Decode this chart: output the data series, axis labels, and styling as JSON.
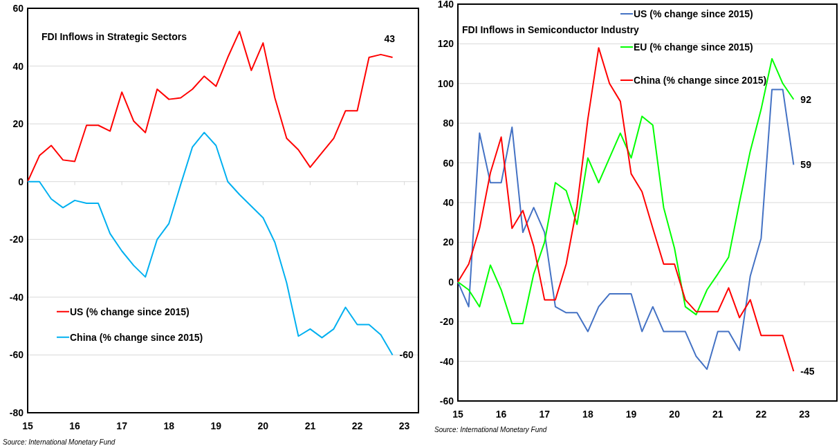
{
  "chart_data": [
    {
      "type": "line",
      "title": "FDI Inflows in Strategic Sectors",
      "x": [
        15,
        15.25,
        15.5,
        15.75,
        16,
        16.25,
        16.5,
        16.75,
        17,
        17.25,
        17.5,
        17.75,
        18,
        18.25,
        18.5,
        18.75,
        19,
        19.25,
        19.5,
        19.75,
        20,
        20.25,
        20.5,
        20.75,
        21,
        21.25,
        21.5,
        21.75,
        22,
        22.25,
        22.5,
        22.75
      ],
      "series": [
        {
          "name": "US (% change since 2015)",
          "color": "#ff0000",
          "values": [
            0,
            9,
            12.5,
            7.5,
            7,
            19.5,
            19.5,
            17.5,
            31,
            21,
            17,
            32,
            28.5,
            29,
            32,
            36.5,
            33,
            43,
            52,
            38.5,
            48,
            29,
            15,
            11,
            5,
            10,
            15,
            24.5,
            24.5,
            43,
            44,
            43
          ],
          "value_labels": [
            null,
            null,
            null,
            null,
            null,
            null,
            null,
            null,
            null,
            null,
            null,
            null,
            null,
            null,
            null,
            null,
            null,
            null,
            null,
            null,
            null,
            null,
            null,
            null,
            null,
            null,
            null,
            null,
            null,
            null,
            null,
            "43"
          ]
        },
        {
          "name": "China (% change since 2015)",
          "color": "#00b0f0",
          "values": [
            0,
            0,
            -6,
            -9,
            -6.5,
            -7.5,
            -7.5,
            -18,
            -24,
            -29,
            -33,
            -20,
            -14.5,
            -1,
            12,
            17,
            12.5,
            0,
            -4.5,
            -8.5,
            -12.5,
            -21,
            -35,
            -53.5,
            -51,
            -54,
            -51,
            -43.5,
            -49.5,
            -49.5,
            -53,
            -60
          ],
          "value_labels": [
            null,
            null,
            null,
            null,
            null,
            null,
            null,
            null,
            null,
            null,
            null,
            null,
            null,
            null,
            null,
            null,
            null,
            null,
            null,
            null,
            null,
            null,
            null,
            null,
            null,
            null,
            null,
            null,
            null,
            null,
            null,
            "-60"
          ]
        }
      ],
      "xlim": [
        15,
        23.3
      ],
      "xticks": [
        15,
        16,
        17,
        18,
        19,
        20,
        21,
        22,
        23
      ],
      "ylim": [
        -80,
        60
      ],
      "yticks": [
        -80,
        -60,
        -40,
        -20,
        0,
        20,
        40,
        60
      ],
      "grid": "y",
      "legend": "bottom left",
      "annotations": [
        "Source: International Monetary Fund"
      ]
    },
    {
      "type": "line",
      "title": "FDI Inflows in Semiconductor Industry",
      "x": [
        15,
        15.25,
        15.5,
        15.75,
        16,
        16.25,
        16.5,
        16.75,
        17,
        17.25,
        17.5,
        17.75,
        18,
        18.25,
        18.5,
        18.75,
        19,
        19.25,
        19.5,
        19.75,
        20,
        20.25,
        20.5,
        20.75,
        21,
        21.25,
        21.5,
        21.75,
        22,
        22.25,
        22.5,
        22.75
      ],
      "series": [
        {
          "name": "US (% change since 2015)",
          "color": "#4472c4",
          "values": [
            0,
            -12.5,
            75,
            50,
            50,
            78,
            25,
            37.5,
            25,
            -12.5,
            -15.5,
            -15.5,
            -25,
            -12.5,
            -6,
            -6,
            -6,
            -25,
            -12.5,
            -25,
            -25,
            -25,
            -37.5,
            -44,
            -25,
            -25,
            -34.5,
            3,
            22,
            97,
            97,
            59
          ],
          "value_labels": [
            null,
            null,
            null,
            null,
            null,
            null,
            null,
            null,
            null,
            null,
            null,
            null,
            null,
            null,
            null,
            null,
            null,
            null,
            null,
            null,
            null,
            null,
            null,
            null,
            null,
            null,
            null,
            null,
            null,
            null,
            null,
            "59"
          ]
        },
        {
          "name": "EU (% change since 2015)",
          "color": "#00ff00",
          "values": [
            0,
            -4,
            -12.5,
            8.5,
            -4,
            -21,
            -21,
            4,
            20,
            50,
            46,
            29,
            62.5,
            50,
            62.5,
            75,
            62.5,
            83.5,
            79,
            37.5,
            17,
            -12.5,
            -16.5,
            -4,
            4,
            12.5,
            40,
            66,
            87,
            112.5,
            100,
            92
          ],
          "value_labels": [
            null,
            null,
            null,
            null,
            null,
            null,
            null,
            null,
            null,
            null,
            null,
            null,
            null,
            null,
            null,
            null,
            null,
            null,
            null,
            null,
            null,
            null,
            null,
            null,
            null,
            null,
            null,
            null,
            null,
            null,
            null,
            "92"
          ]
        },
        {
          "name": "China (% change since 2015)",
          "color": "#ff0000",
          "values": [
            0,
            9,
            27,
            55,
            73,
            27,
            36,
            18,
            -9,
            -9,
            9,
            38,
            82,
            118,
            100,
            91,
            54.5,
            45.5,
            27,
            9,
            9,
            -9,
            -15,
            -15,
            -15,
            -3,
            -18,
            -9,
            -27,
            -27,
            -27,
            -45
          ],
          "value_labels": [
            null,
            null,
            null,
            null,
            null,
            null,
            null,
            null,
            null,
            null,
            null,
            null,
            null,
            null,
            null,
            null,
            null,
            null,
            null,
            null,
            null,
            null,
            null,
            null,
            null,
            null,
            null,
            null,
            null,
            null,
            null,
            "-45"
          ]
        }
      ],
      "xlim": [
        15,
        23.75
      ],
      "xticks": [
        15,
        16,
        17,
        18,
        19,
        20,
        21,
        22,
        23
      ],
      "ylim": [
        -60,
        140
      ],
      "yticks": [
        -60,
        -40,
        -20,
        0,
        20,
        40,
        60,
        80,
        100,
        120,
        140
      ],
      "grid": "y",
      "legend": "top",
      "annotations": [
        "Source: International Monetary Fund"
      ]
    }
  ]
}
